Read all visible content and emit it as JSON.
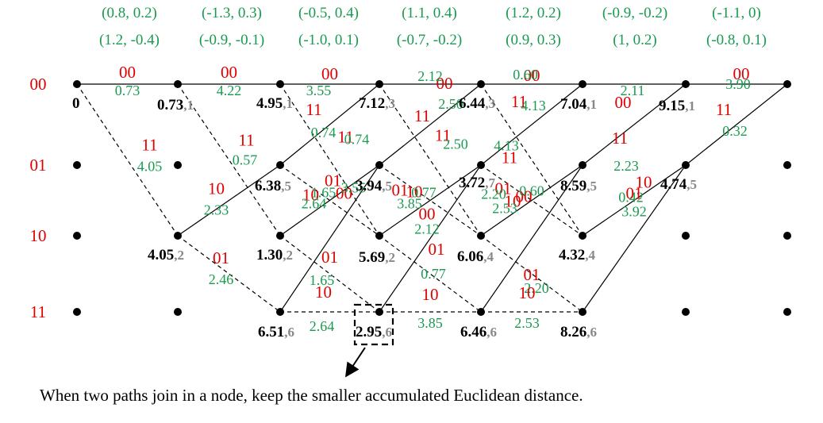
{
  "received": [
    {
      "a": "(0.8, 0.2)",
      "b": "(1.2, -0.4)"
    },
    {
      "a": "(-1.3, 0.3)",
      "b": "(-0.9, -0.1)"
    },
    {
      "a": "(-0.5, 0.4)",
      "b": "(-1.0, 0.1)"
    },
    {
      "a": "(1.1, 0.4)",
      "b": "(-0.7, -0.2)"
    },
    {
      "a": "(1.2, 0.2)",
      "b": "(0.9, 0.3)"
    },
    {
      "a": "(-0.9, -0.2)",
      "b": "(1, 0.2)"
    },
    {
      "a": "(-1.1, 0)",
      "b": "(-0.8, 0.1)"
    }
  ],
  "states": [
    "00",
    "01",
    "10",
    "11"
  ],
  "nodes": [
    {
      "t": 0,
      "s": 0,
      "metric": "0",
      "surv": ""
    },
    {
      "t": 1,
      "s": 0,
      "metric": "0.73",
      "surv": ",1"
    },
    {
      "t": 1,
      "s": 2,
      "metric": "4.05",
      "surv": ",2"
    },
    {
      "t": 2,
      "s": 0,
      "metric": "4.95",
      "surv": ",1"
    },
    {
      "t": 2,
      "s": 1,
      "metric": "6.38",
      "surv": ",5"
    },
    {
      "t": 2,
      "s": 2,
      "metric": "1.30",
      "surv": ",2"
    },
    {
      "t": 2,
      "s": 3,
      "metric": "6.51",
      "surv": ",6"
    },
    {
      "t": 3,
      "s": 0,
      "metric": "7.12",
      "surv": ",3"
    },
    {
      "t": 3,
      "s": 1,
      "metric": "3.94",
      "surv": ",5"
    },
    {
      "t": 3,
      "s": 2,
      "metric": "5.69",
      "surv": ",2"
    },
    {
      "t": 3,
      "s": 3,
      "metric": "2.95",
      "surv": ",6"
    },
    {
      "t": 4,
      "s": 0,
      "metric": "6.44",
      "surv": ",3"
    },
    {
      "t": 4,
      "s": 1,
      "metric": "3.72",
      "surv": ",7"
    },
    {
      "t": 4,
      "s": 2,
      "metric": "6.06",
      "surv": ",4"
    },
    {
      "t": 4,
      "s": 3,
      "metric": "6.46",
      "surv": ",6"
    },
    {
      "t": 5,
      "s": 0,
      "metric": "7.04",
      "surv": ",1"
    },
    {
      "t": 5,
      "s": 1,
      "metric": "8.59",
      "surv": ",5"
    },
    {
      "t": 5,
      "s": 2,
      "metric": "4.32",
      "surv": ",4"
    },
    {
      "t": 5,
      "s": 3,
      "metric": "8.26",
      "surv": ",6"
    },
    {
      "t": 6,
      "s": 0,
      "metric": "9.15",
      "surv": ",1"
    },
    {
      "t": 6,
      "s": 1,
      "metric": "4.74",
      "surv": ",5"
    }
  ],
  "empty_nodes": [
    {
      "t": 0,
      "s": 1
    },
    {
      "t": 0,
      "s": 2
    },
    {
      "t": 0,
      "s": 3
    },
    {
      "t": 1,
      "s": 1
    },
    {
      "t": 1,
      "s": 3
    },
    {
      "t": 6,
      "s": 2
    },
    {
      "t": 6,
      "s": 3
    },
    {
      "t": 7,
      "s": 0
    },
    {
      "t": 7,
      "s": 1
    },
    {
      "t": 7,
      "s": 2
    },
    {
      "t": 7,
      "s": 3
    }
  ],
  "branches": [
    {
      "t": 0,
      "from": 0,
      "to": 0,
      "solid": true,
      "label": "00",
      "weight": "0.73"
    },
    {
      "t": 0,
      "from": 0,
      "to": 2,
      "solid": false,
      "label": "11",
      "weight": "4.05"
    },
    {
      "t": 1,
      "from": 0,
      "to": 0,
      "solid": true,
      "label": "00",
      "weight": "4.22"
    },
    {
      "t": 1,
      "from": 0,
      "to": 2,
      "solid": false,
      "label": "11",
      "weight": "0.57"
    },
    {
      "t": 1,
      "from": 2,
      "to": 1,
      "solid": true,
      "label": "10",
      "weight": "2.33"
    },
    {
      "t": 1,
      "from": 2,
      "to": 3,
      "solid": false,
      "label": "01",
      "weight": "2.46"
    },
    {
      "t": 2,
      "from": 0,
      "to": 0,
      "solid": true,
      "label": "00",
      "weight": "3.55"
    },
    {
      "t": 2,
      "from": 0,
      "to": 2,
      "solid": false,
      "label": "11",
      "weight": "0.74"
    },
    {
      "t": 2,
      "from": 1,
      "to": 0,
      "solid": true,
      "label": "11",
      "weight": "0.74"
    },
    {
      "t": 2,
      "from": 1,
      "to": 2,
      "solid": false,
      "label": "00",
      "weight": "3.55"
    },
    {
      "t": 2,
      "from": 2,
      "to": 1,
      "solid": true,
      "label": "10",
      "weight": "2.64"
    },
    {
      "t": 2,
      "from": 2,
      "to": 3,
      "solid": false,
      "label": "01",
      "weight": "1.65"
    },
    {
      "t": 2,
      "from": 3,
      "to": 1,
      "solid": true,
      "label": "01",
      "weight": "1.65"
    },
    {
      "t": 2,
      "from": 3,
      "to": 3,
      "solid": false,
      "label": "10",
      "weight": "2.64"
    },
    {
      "t": 3,
      "from": 0,
      "to": 0,
      "solid": true,
      "label": "00",
      "weight": "2.12"
    },
    {
      "t": 3,
      "from": 0,
      "to": 2,
      "solid": false,
      "label": "11",
      "weight": "2.50"
    },
    {
      "t": 3,
      "from": 1,
      "to": 0,
      "solid": true,
      "label": "11",
      "weight": "2.50"
    },
    {
      "t": 3,
      "from": 1,
      "to": 2,
      "solid": false,
      "label": "00",
      "weight": "2.12"
    },
    {
      "t": 3,
      "from": 2,
      "to": 1,
      "solid": true,
      "label": "10",
      "weight": "3.85"
    },
    {
      "t": 3,
      "from": 2,
      "to": 3,
      "solid": false,
      "label": "01",
      "weight": "0.77"
    },
    {
      "t": 3,
      "from": 3,
      "to": 1,
      "solid": true,
      "label": "01",
      "weight": "0.77"
    },
    {
      "t": 3,
      "from": 3,
      "to": 3,
      "solid": false,
      "label": "10",
      "weight": "3.85"
    },
    {
      "t": 4,
      "from": 0,
      "to": 0,
      "solid": true,
      "label": "00",
      "weight": "0.60"
    },
    {
      "t": 4,
      "from": 0,
      "to": 2,
      "solid": false,
      "label": "11",
      "weight": "4.13"
    },
    {
      "t": 4,
      "from": 1,
      "to": 0,
      "solid": true,
      "label": "11",
      "weight": "4.13"
    },
    {
      "t": 4,
      "from": 1,
      "to": 2,
      "solid": false,
      "label": "00",
      "weight": "0.60"
    },
    {
      "t": 4,
      "from": 2,
      "to": 1,
      "solid": true,
      "label": "10",
      "weight": "2.53"
    },
    {
      "t": 4,
      "from": 2,
      "to": 3,
      "solid": false,
      "label": "01",
      "weight": "2.20"
    },
    {
      "t": 4,
      "from": 3,
      "to": 1,
      "solid": true,
      "label": "01",
      "weight": "2.20"
    },
    {
      "t": 4,
      "from": 3,
      "to": 3,
      "solid": false,
      "label": "10",
      "weight": "2.53"
    },
    {
      "t": 5,
      "from": 0,
      "to": 0,
      "solid": true,
      "label": "00",
      "weight": "2.11"
    },
    {
      "t": 5,
      "from": 1,
      "to": 0,
      "solid": true,
      "label": "11",
      "weight": "2.23"
    },
    {
      "t": 5,
      "from": 2,
      "to": 1,
      "solid": true,
      "label": "10",
      "weight": "0.42"
    },
    {
      "t": 5,
      "from": 3,
      "to": 1,
      "solid": true,
      "label": "01",
      "weight": "3.92"
    },
    {
      "t": 6,
      "from": 0,
      "to": 0,
      "solid": true,
      "label": "00",
      "weight": "3.90"
    },
    {
      "t": 6,
      "from": 1,
      "to": 0,
      "solid": true,
      "label": "11",
      "weight": "0.32"
    }
  ],
  "caption": "When two paths join in a node, keep the smaller accumulated Euclidean distance."
}
